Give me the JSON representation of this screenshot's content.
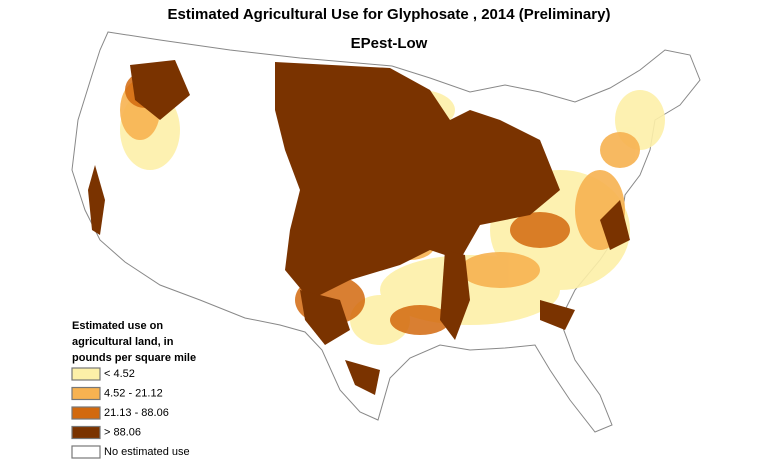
{
  "header": {
    "title": "Estimated Agricultural Use for Glyphosate , 2014 (Preliminary)",
    "subtitle": "EPest-Low"
  },
  "legend": {
    "title_lines": [
      "Estimated use on",
      "agricultural land, in",
      "pounds per square mile"
    ],
    "items": [
      {
        "label": "< 4.52",
        "color": "#fdf0a8"
      },
      {
        "label": "4.52 - 21.12",
        "color": "#f7b251"
      },
      {
        "label": "21.13 - 88.06",
        "color": "#d2690e"
      },
      {
        "label": "> 88.06",
        "color": "#7a3300"
      },
      {
        "label": "No estimated use",
        "color": "#ffffff"
      }
    ]
  }
}
